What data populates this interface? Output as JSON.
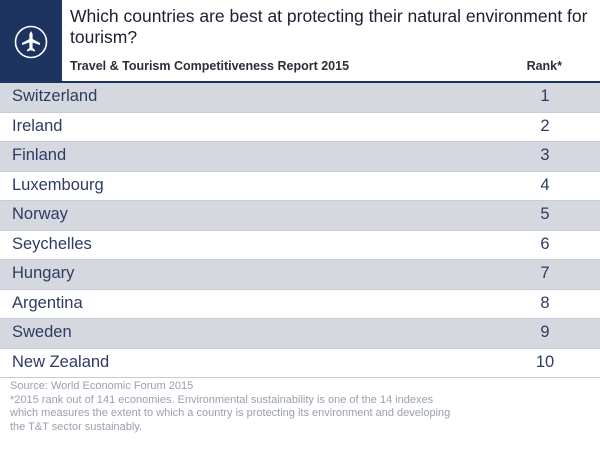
{
  "header": {
    "title": "Which countries are best at protecting their natural environment for tourism?",
    "subtitle": "Travel & Tourism Competitiveness Report 2015",
    "rank_label": "Rank*",
    "icon": "airplane-icon"
  },
  "chart_data": {
    "type": "table",
    "title": "Which countries are best at protecting their natural environment for tourism?",
    "subtitle": "Travel & Tourism Competitiveness Report 2015",
    "columns": [
      "",
      "Rank*"
    ],
    "rows": [
      {
        "country": "Switzerland",
        "rank": "1"
      },
      {
        "country": "Ireland",
        "rank": "2"
      },
      {
        "country": "Finland",
        "rank": "3"
      },
      {
        "country": "Luxembourg",
        "rank": "4"
      },
      {
        "country": "Norway",
        "rank": "5"
      },
      {
        "country": "Seychelles",
        "rank": "6"
      },
      {
        "country": "Hungary",
        "rank": "7"
      },
      {
        "country": "Argentina",
        "rank": "8"
      },
      {
        "country": "Sweden",
        "rank": "9"
      },
      {
        "country": "New Zealand",
        "rank": "10"
      }
    ]
  },
  "footer": {
    "source": "Source: World Economic Forum 2015",
    "note_line1": "*2015 rank out of 141 economies. Environmental sustainability is one of the 14 indexes",
    "note_line2": "which measures the extent to which a country is protecting its environment and developing",
    "note_line3": "the T&T sector sustainably."
  },
  "colors": {
    "brand_navy": "#1d3461",
    "row_stripe": "#d6d8e0",
    "text_blue": "#2e3b63",
    "footer_gray": "#9aa0ae"
  }
}
